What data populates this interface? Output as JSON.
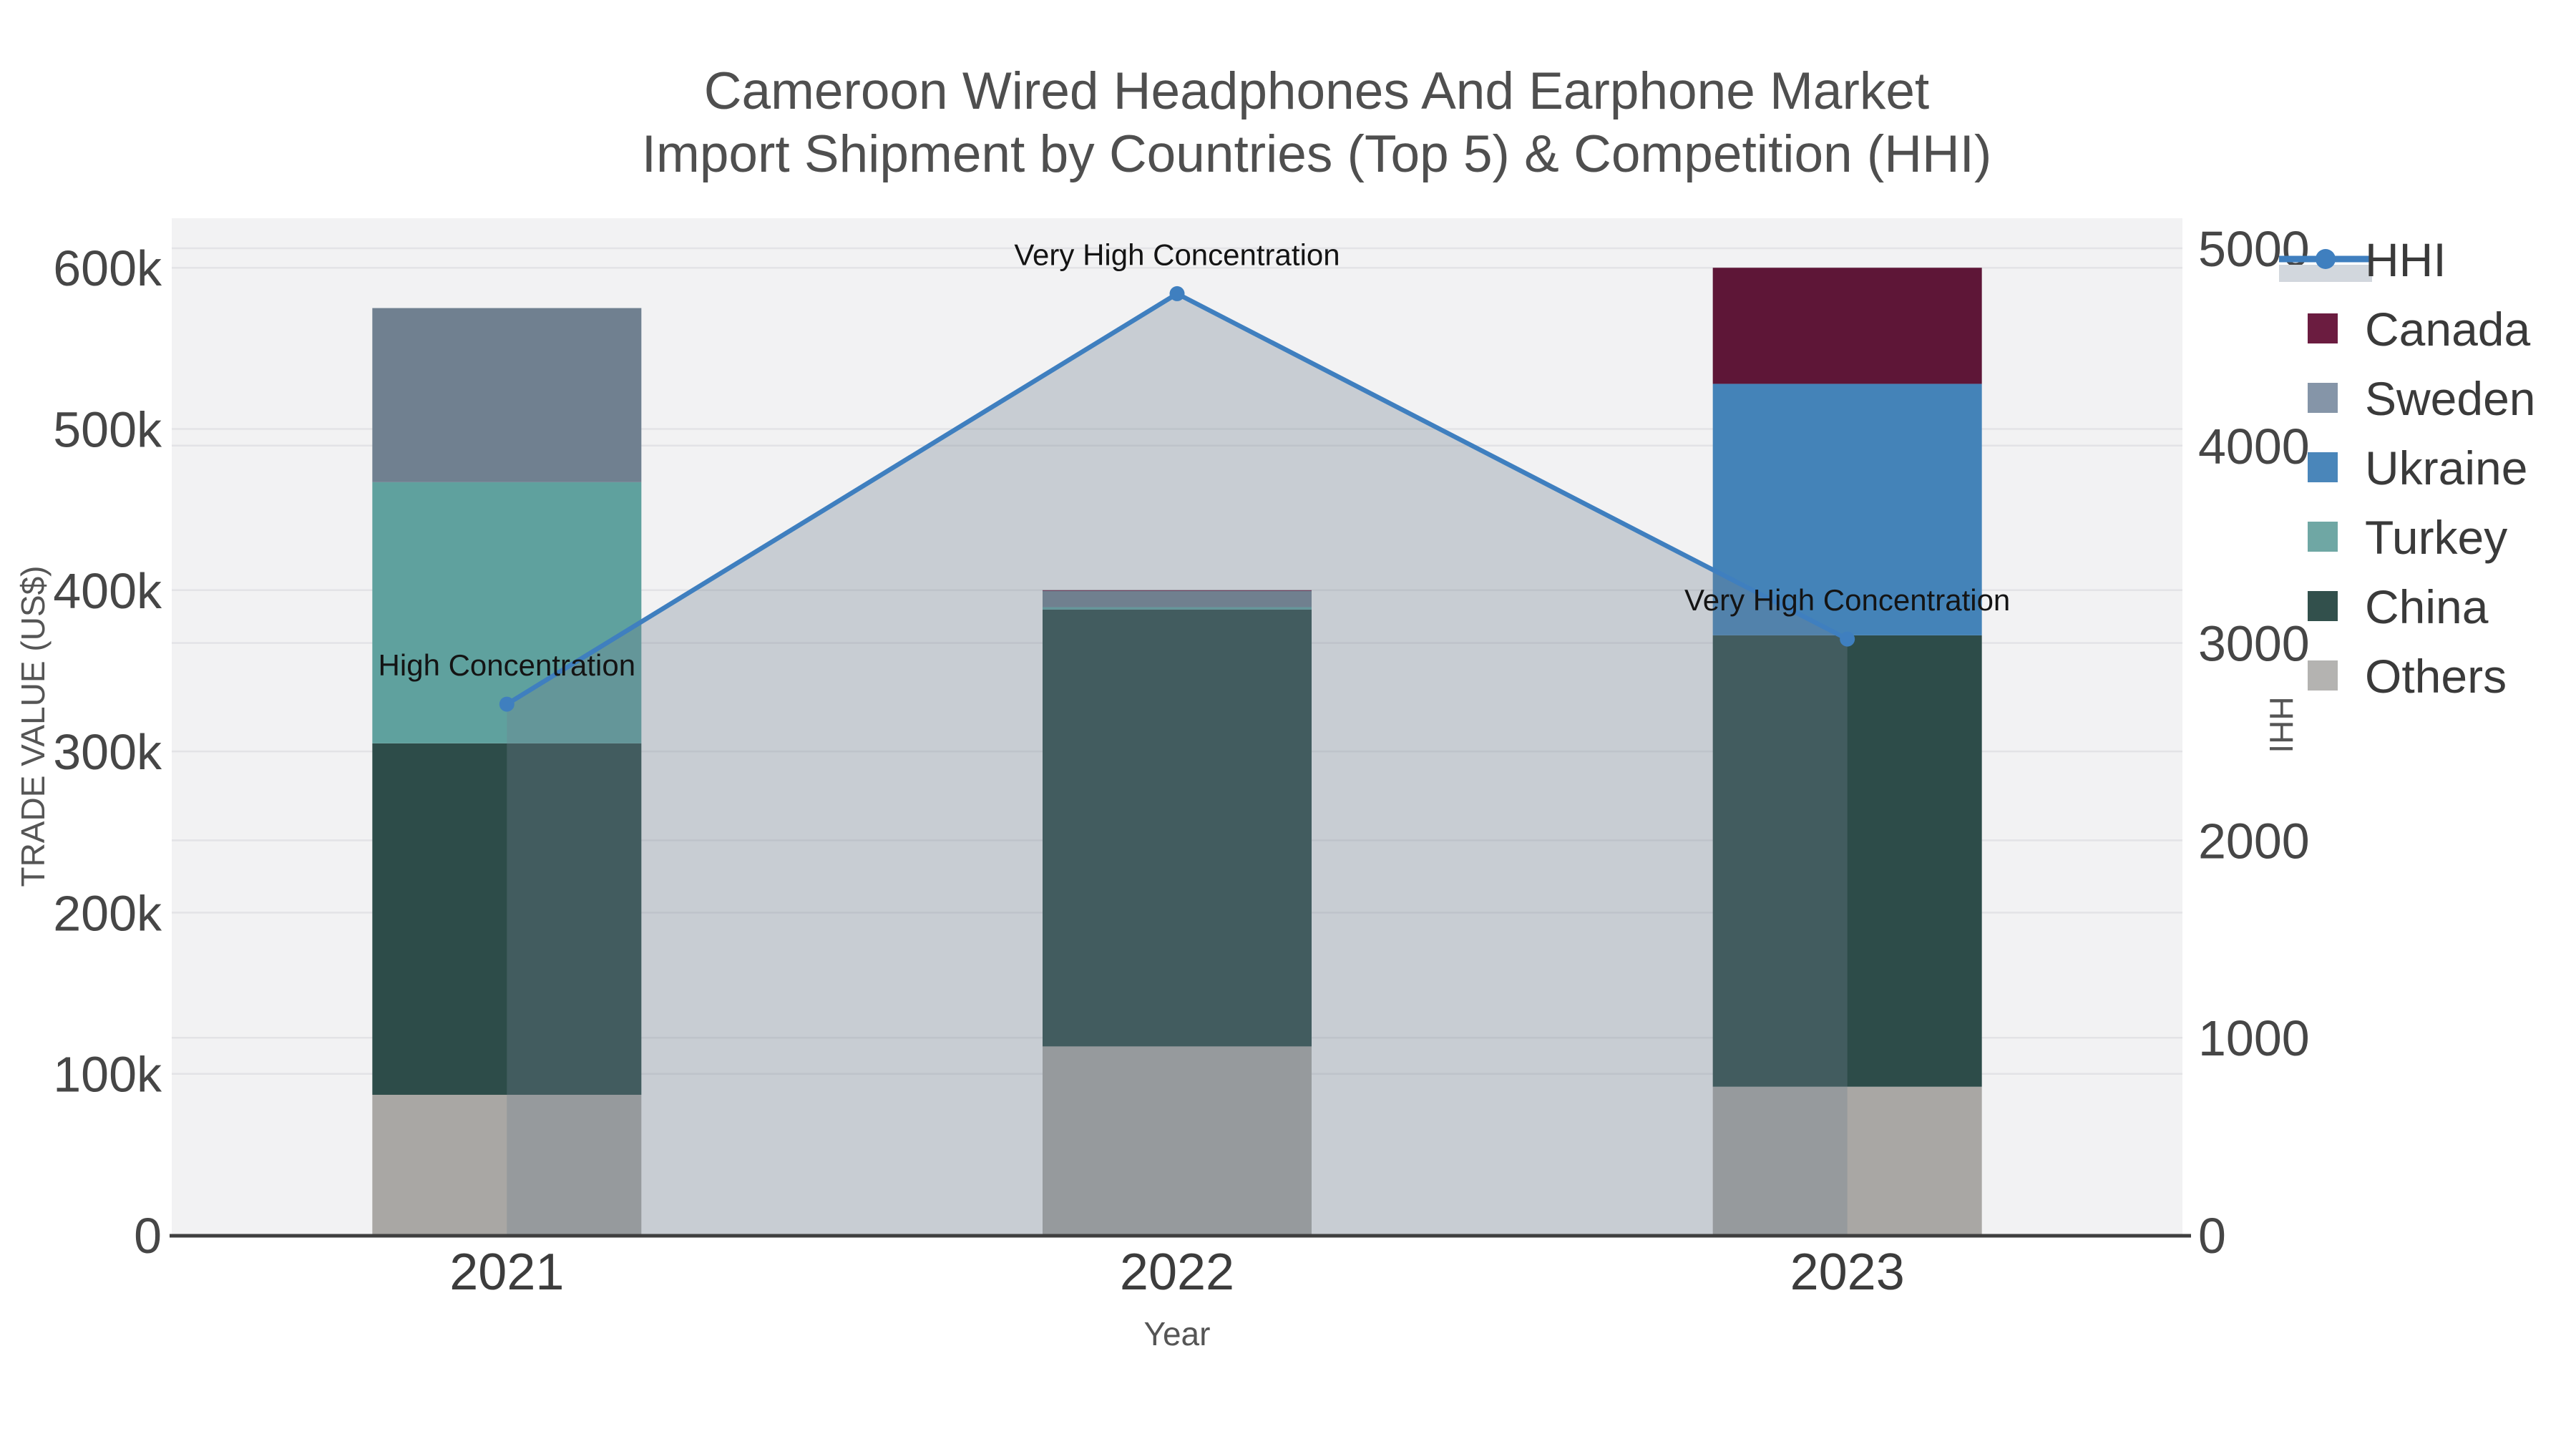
{
  "title": {
    "line1": "Cameroon Wired Headphones And Earphone Market",
    "line2": "Import Shipment by Countries (Top 5) & Competition (HHI)"
  },
  "axes": {
    "x": {
      "title": "Year",
      "categories": [
        "2021",
        "2022",
        "2023"
      ]
    },
    "y_left": {
      "title": "TRADE VALUE (US$)",
      "tick_labels": [
        "0",
        "100k",
        "200k",
        "300k",
        "400k",
        "500k",
        "600k"
      ],
      "tick_values": [
        0,
        100000,
        200000,
        300000,
        400000,
        500000,
        600000
      ]
    },
    "y_right": {
      "title": "HHI",
      "tick_labels": [
        "0",
        "1000",
        "2000",
        "3000",
        "4000",
        "5000"
      ],
      "tick_values": [
        0,
        1000,
        2000,
        3000,
        4000,
        5000
      ]
    }
  },
  "legend": {
    "items": [
      {
        "label": "HHI",
        "type": "line",
        "color": "#3f7fbf",
        "area_color": "#d2d7dd"
      },
      {
        "label": "Canada",
        "type": "swatch",
        "color": "#6b1c40"
      },
      {
        "label": "Sweden",
        "type": "swatch",
        "color": "#8595a8"
      },
      {
        "label": "Ukraine",
        "type": "swatch",
        "color": "#4a86ba"
      },
      {
        "label": "Turkey",
        "type": "swatch",
        "color": "#6fa7a4"
      },
      {
        "label": "China",
        "type": "swatch",
        "color": "#32504c"
      },
      {
        "label": "Others",
        "type": "swatch",
        "color": "#b4b3b1"
      }
    ]
  },
  "chart_data": {
    "type": "bar+line",
    "title": "Cameroon Wired Headphones And Earphone Market Import Shipment by Countries (Top 5) & Competition (HHI)",
    "xlabel": "Year",
    "ylabel_left": "TRADE VALUE (US$)",
    "ylabel_right": "HHI",
    "ylim_left": [
      0,
      600000
    ],
    "ylim_right": [
      0,
      5000
    ],
    "grid": true,
    "legend_position": "right",
    "categories": [
      "2021",
      "2022",
      "2023"
    ],
    "bar_series_bottom_to_top": [
      {
        "name": "Others",
        "color": "#a9a7a4",
        "values": [
          87000,
          117000,
          92000
        ]
      },
      {
        "name": "China",
        "color": "#2d4c49",
        "values": [
          218000,
          271000,
          280000
        ]
      },
      {
        "name": "Turkey",
        "color": "#5fa19e",
        "values": [
          162000,
          1500,
          0
        ]
      },
      {
        "name": "Ukraine",
        "color": "#4483b8",
        "values": [
          0,
          0,
          156000
        ]
      },
      {
        "name": "Sweden",
        "color": "#708090",
        "values": [
          108000,
          10000,
          0
        ]
      },
      {
        "name": "Canada",
        "color": "#5e1637",
        "values": [
          0,
          500,
          72000
        ]
      }
    ],
    "bar_totals": [
      575000,
      400000,
      600000
    ],
    "line_series": {
      "name": "HHI",
      "color": "#3f7fbf",
      "marker_color": "#3f7fbf",
      "area_fill": "rgba(112,128,144,0.32)",
      "values": [
        2690,
        4770,
        3020
      ]
    },
    "annotations": [
      {
        "category": "2021",
        "text": "High Concentration"
      },
      {
        "category": "2022",
        "text": "Very High Concentration"
      },
      {
        "category": "2023",
        "text": "Very High Concentration"
      }
    ]
  },
  "style": {
    "plot_bg": "#f2f2f3",
    "gridline_color": "#e3e3e6",
    "axis_line_color": "#3f3f3f"
  }
}
